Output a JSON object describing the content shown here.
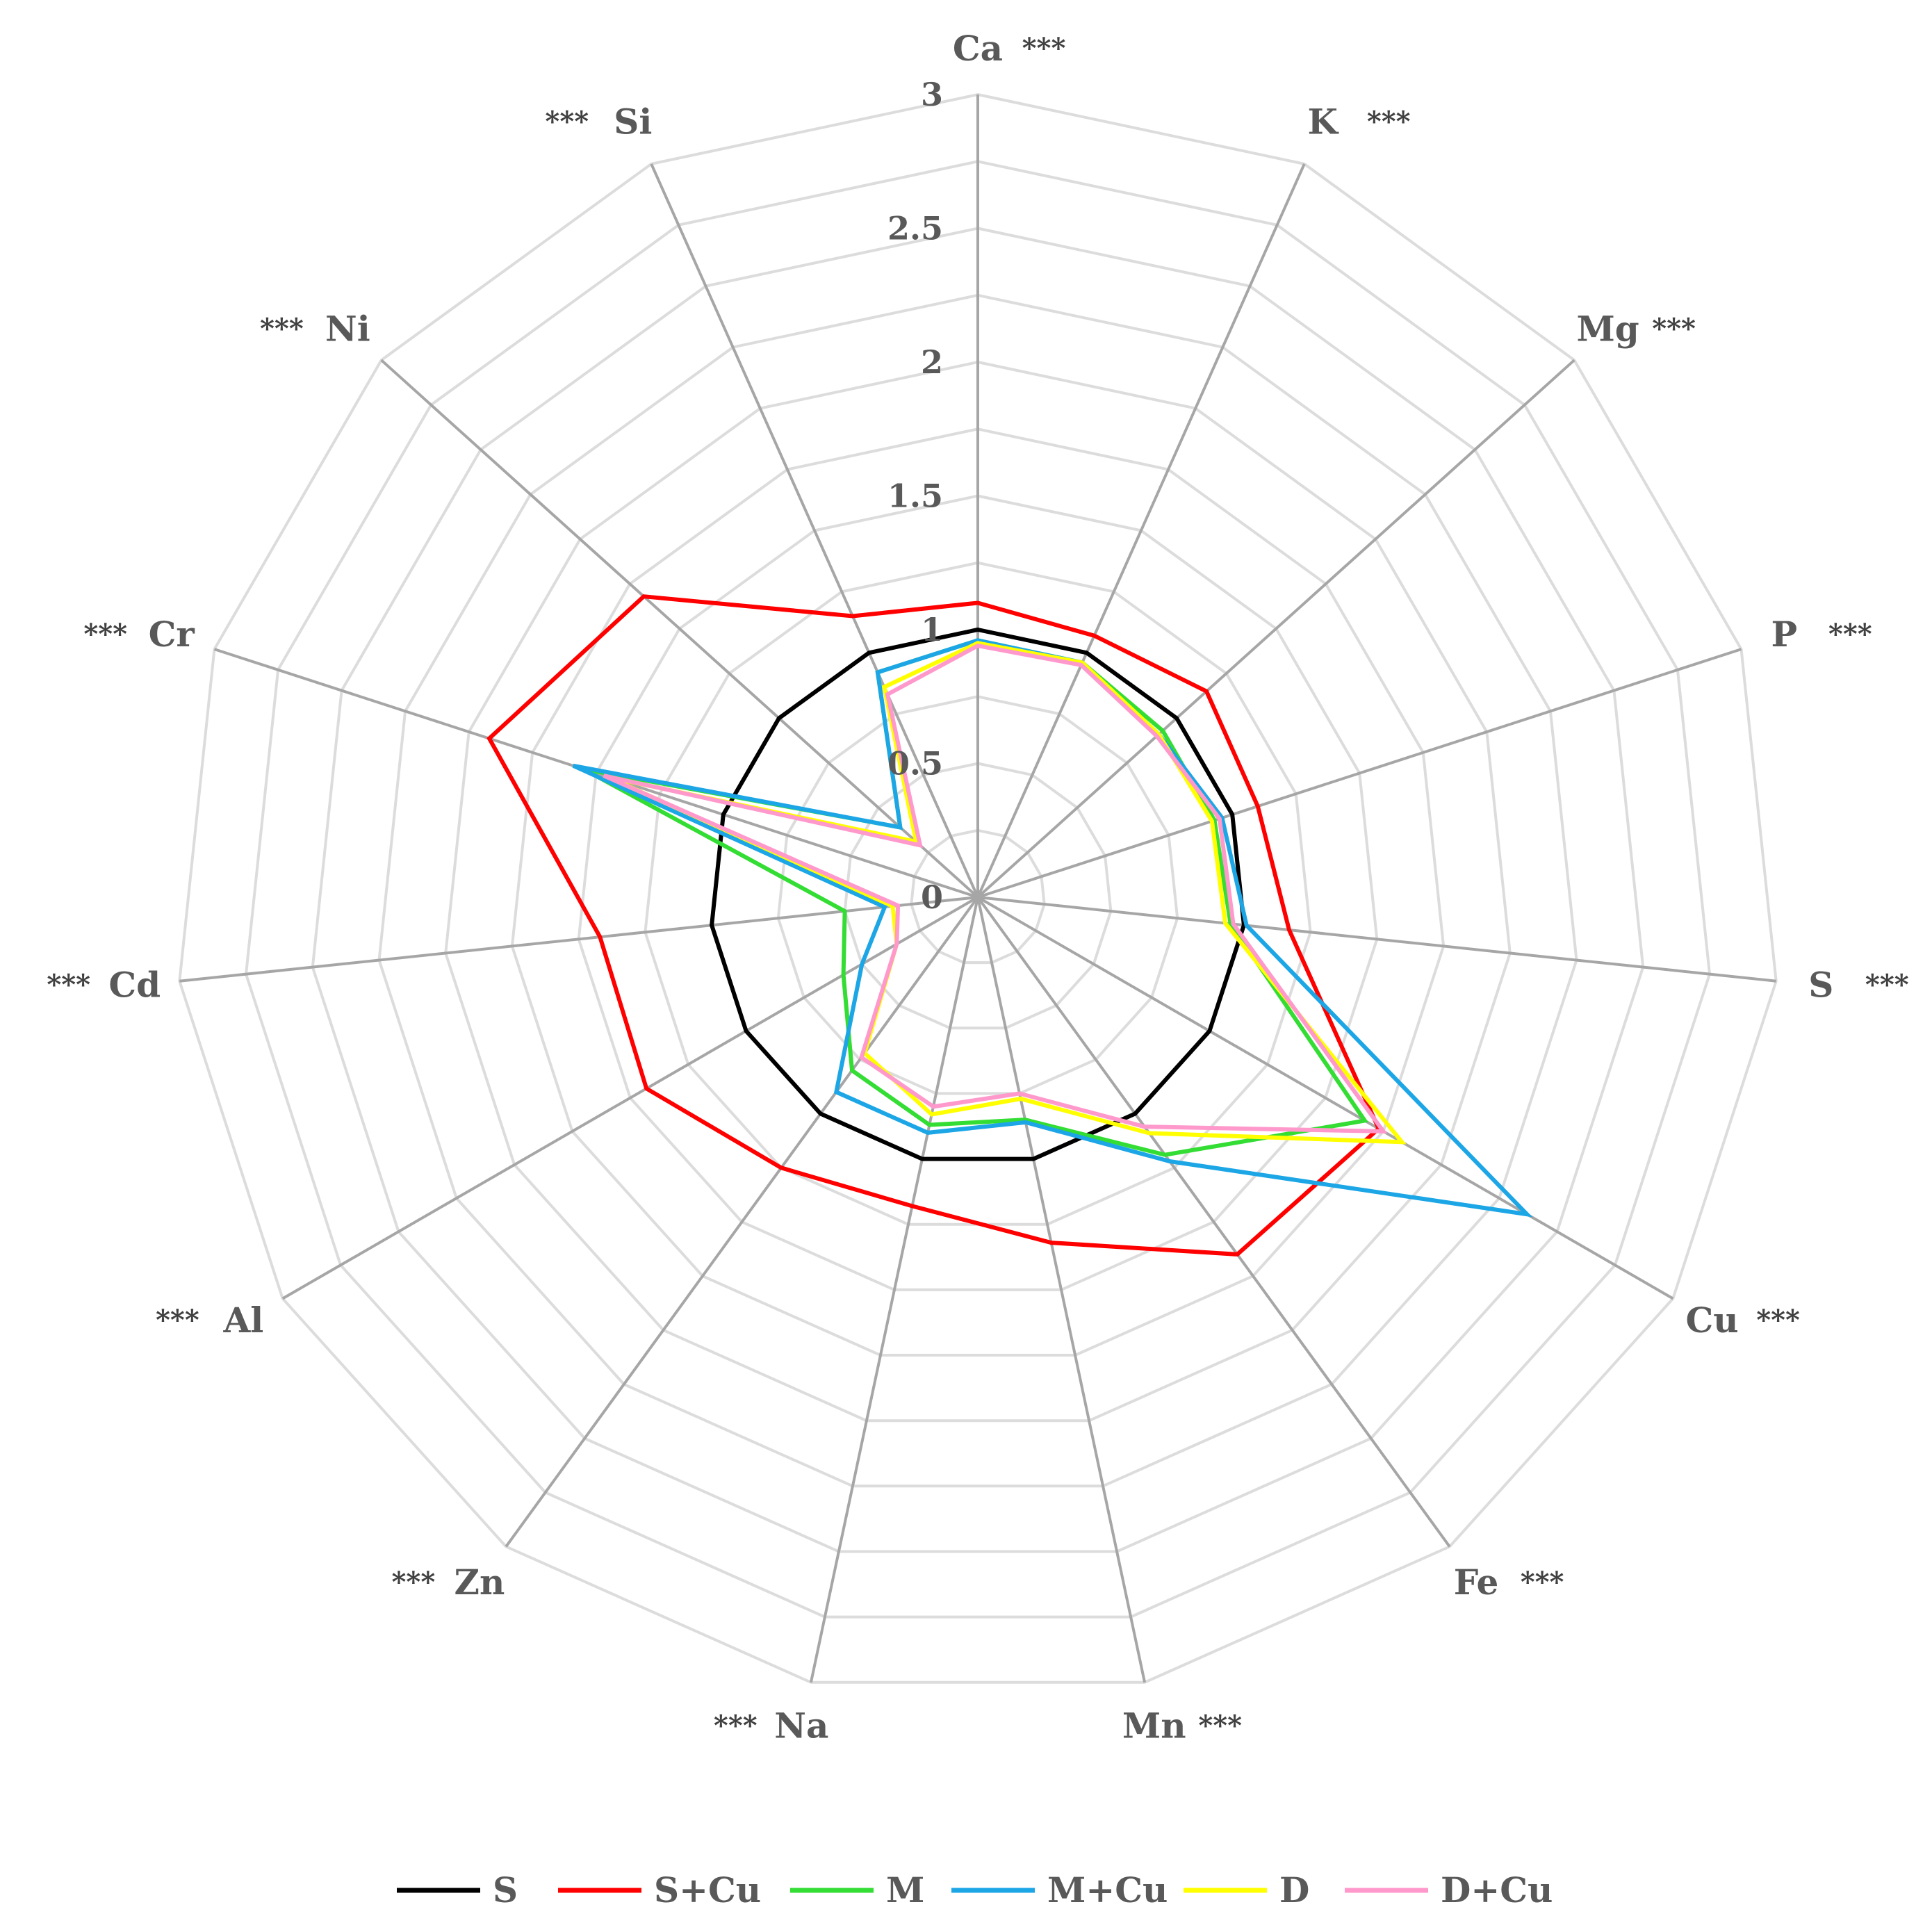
{
  "chart_data": {
    "type": "radar",
    "title": "",
    "axes": [
      {
        "label": "Ca",
        "sig": "***"
      },
      {
        "label": "K",
        "sig": "***"
      },
      {
        "label": "Mg",
        "sig": "***"
      },
      {
        "label": "P",
        "sig": "***"
      },
      {
        "label": "S",
        "sig": "***"
      },
      {
        "label": "Cu",
        "sig": "***"
      },
      {
        "label": "Fe",
        "sig": "***"
      },
      {
        "label": "Mn",
        "sig": "***"
      },
      {
        "label": "Na",
        "sig": "***"
      },
      {
        "label": "Zn",
        "sig": "***"
      },
      {
        "label": "Al",
        "sig": "***"
      },
      {
        "label": "Cd",
        "sig": "***"
      },
      {
        "label": "Cr",
        "sig": "***"
      },
      {
        "label": "Ni",
        "sig": "***"
      },
      {
        "label": "Si",
        "sig": "***"
      }
    ],
    "rlim": [
      0,
      3
    ],
    "ticks": [
      "0",
      "0.5",
      "1",
      "1.5",
      "2",
      "2.5",
      "3"
    ],
    "tick_values": [
      0,
      0.5,
      1,
      1.5,
      2,
      2.5,
      3
    ],
    "grid": true,
    "legend_position": "bottom",
    "series": [
      {
        "name": "S",
        "color": "#000000",
        "values": [
          1.0,
          1.0,
          1.0,
          1.0,
          1.0,
          1.0,
          1.0,
          1.0,
          1.0,
          1.0,
          1.0,
          1.0,
          1.0,
          1.0,
          1.0
        ]
      },
      {
        "name": "S+Cu",
        "color": "#ff0000",
        "values": [
          1.1,
          1.07,
          1.15,
          1.1,
          1.17,
          1.73,
          1.65,
          1.32,
          1.18,
          1.25,
          1.43,
          1.42,
          1.92,
          1.68,
          1.15
        ]
      },
      {
        "name": "M",
        "color": "#33dd33",
        "values": [
          0.96,
          0.96,
          0.93,
          0.93,
          0.95,
          1.67,
          1.19,
          0.85,
          0.87,
          0.8,
          0.58,
          0.5,
          1.55,
          0.39,
          0.92
        ]
      },
      {
        "name": "M+Cu",
        "color": "#1ca6e6",
        "values": [
          0.96,
          0.96,
          0.91,
          0.96,
          1.01,
          2.37,
          1.22,
          0.86,
          0.9,
          0.9,
          0.5,
          0.35,
          1.59,
          0.39,
          0.92
        ]
      },
      {
        "name": "D",
        "color": "#ffff00",
        "values": [
          0.95,
          0.96,
          0.91,
          0.92,
          0.93,
          1.83,
          1.09,
          0.77,
          0.83,
          0.72,
          0.35,
          0.32,
          1.45,
          0.31,
          0.86
        ]
      },
      {
        "name": "D+Cu",
        "color": "#ff99cc",
        "values": [
          0.94,
          0.95,
          0.9,
          0.95,
          0.96,
          1.75,
          1.06,
          0.75,
          0.8,
          0.74,
          0.35,
          0.3,
          1.47,
          0.29,
          0.83
        ]
      }
    ]
  }
}
